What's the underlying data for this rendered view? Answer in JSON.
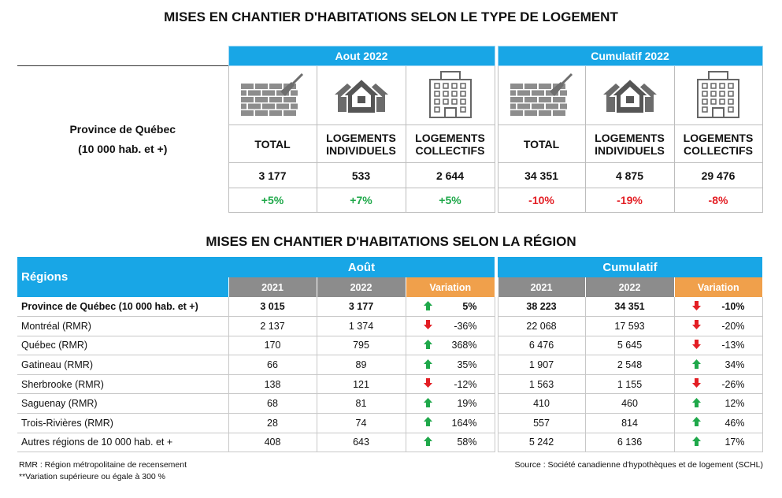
{
  "title_type": "MISES EN CHANTIER D'HABITATIONS SELON LE TYPE DE LOGEMENT",
  "type_table": {
    "region_label": [
      "Province de Québec",
      "(10 000 hab. et +)"
    ],
    "groups": [
      "Aout 2022",
      "Cumulatif 2022"
    ],
    "columns": [
      "TOTAL",
      "LOGEMENTS INDIVIDUELS",
      "LOGEMENTS COLLECTIFS",
      "TOTAL",
      "LOGEMENTS INDIVIDUELS",
      "LOGEMENTS COLLECTIFS"
    ],
    "values": [
      "3 177",
      "533",
      "2 644",
      "34 351",
      "4 875",
      "29 476"
    ],
    "changes": [
      "+5%",
      "+7%",
      "+5%",
      "-10%",
      "-19%",
      "-8%"
    ]
  },
  "title_region": "MISES EN CHANTIER D'HABITATIONS SELON LA RÉGION",
  "region_table": {
    "header": "Régions",
    "groups": [
      "Août",
      "Cumulatif"
    ],
    "subheaders": [
      "2021",
      "2022",
      "Variation",
      "2021",
      "2022",
      "Variation"
    ],
    "rows": [
      [
        "Province de Québec (10 000 hab. et +)",
        "3 015",
        "3 177",
        "5%",
        "38 223",
        "34 351",
        "-10%"
      ],
      [
        "Montréal (RMR)",
        "2 137",
        "1 374",
        "-36%",
        "22 068",
        "17 593",
        "-20%"
      ],
      [
        "Québec (RMR)",
        "170",
        "795",
        "368%",
        "6 476",
        "5 645",
        "-13%"
      ],
      [
        "Gatineau (RMR)",
        "66",
        "89",
        "35%",
        "1 907",
        "2 548",
        "34%"
      ],
      [
        "Sherbrooke (RMR)",
        "138",
        "121",
        "-12%",
        "1 563",
        "1 155",
        "-26%"
      ],
      [
        "Saguenay (RMR)",
        "68",
        "81",
        "19%",
        "410",
        "460",
        "12%"
      ],
      [
        "Trois-Rivières (RMR)",
        "28",
        "74",
        "164%",
        "557",
        "814",
        "46%"
      ],
      [
        "Autres régions de 10 000  hab. et +",
        "408",
        "643",
        "58%",
        "5 242",
        "6 136",
        "17%"
      ]
    ]
  },
  "footnotes": [
    "RMR : Région métropolitaine de recensement",
    "**Variation supérieure ou égale à 300 %"
  ],
  "source": "Source : Société canadienne d'hypothèques et de logement (SCHL)"
}
